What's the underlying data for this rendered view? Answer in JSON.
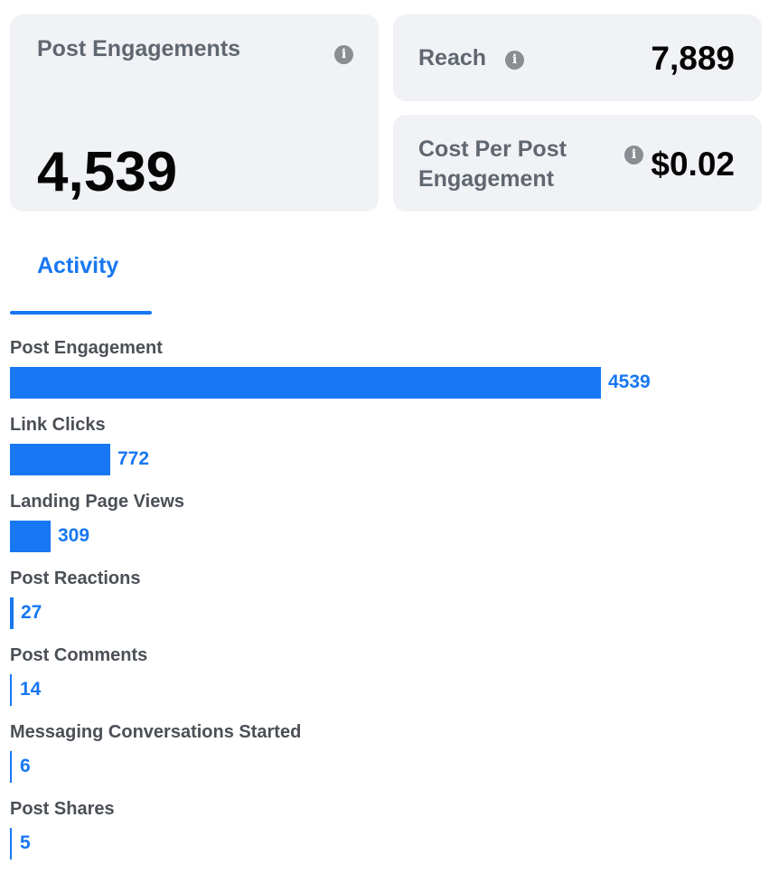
{
  "summary": {
    "post_engagements": {
      "label": "Post Engagements",
      "value": "4,539",
      "info_icon": "info-icon"
    },
    "reach": {
      "label": "Reach",
      "value": "7,889",
      "info_icon": "info-icon"
    },
    "cost_per_post_engagement": {
      "label": "Cost Per Post Engagement",
      "value": "$0.02",
      "info_icon": "info-icon"
    }
  },
  "tabs": [
    {
      "label": "Activity",
      "active": true
    }
  ],
  "colors": {
    "accent": "#1877f2",
    "card_bg": "#f0f2f5",
    "label_gray": "#606770",
    "icon_gray": "#8a8d91"
  },
  "activity": {
    "max_value": 4539,
    "metrics": [
      {
        "label": "Post Engagement",
        "value": 4539,
        "display": "4539"
      },
      {
        "label": "Link Clicks",
        "value": 772,
        "display": "772"
      },
      {
        "label": "Landing Page Views",
        "value": 309,
        "display": "309"
      },
      {
        "label": "Post Reactions",
        "value": 27,
        "display": "27"
      },
      {
        "label": "Post Comments",
        "value": 14,
        "display": "14"
      },
      {
        "label": "Messaging Conversations Started",
        "value": 6,
        "display": "6"
      },
      {
        "label": "Post Shares",
        "value": 5,
        "display": "5"
      }
    ]
  }
}
